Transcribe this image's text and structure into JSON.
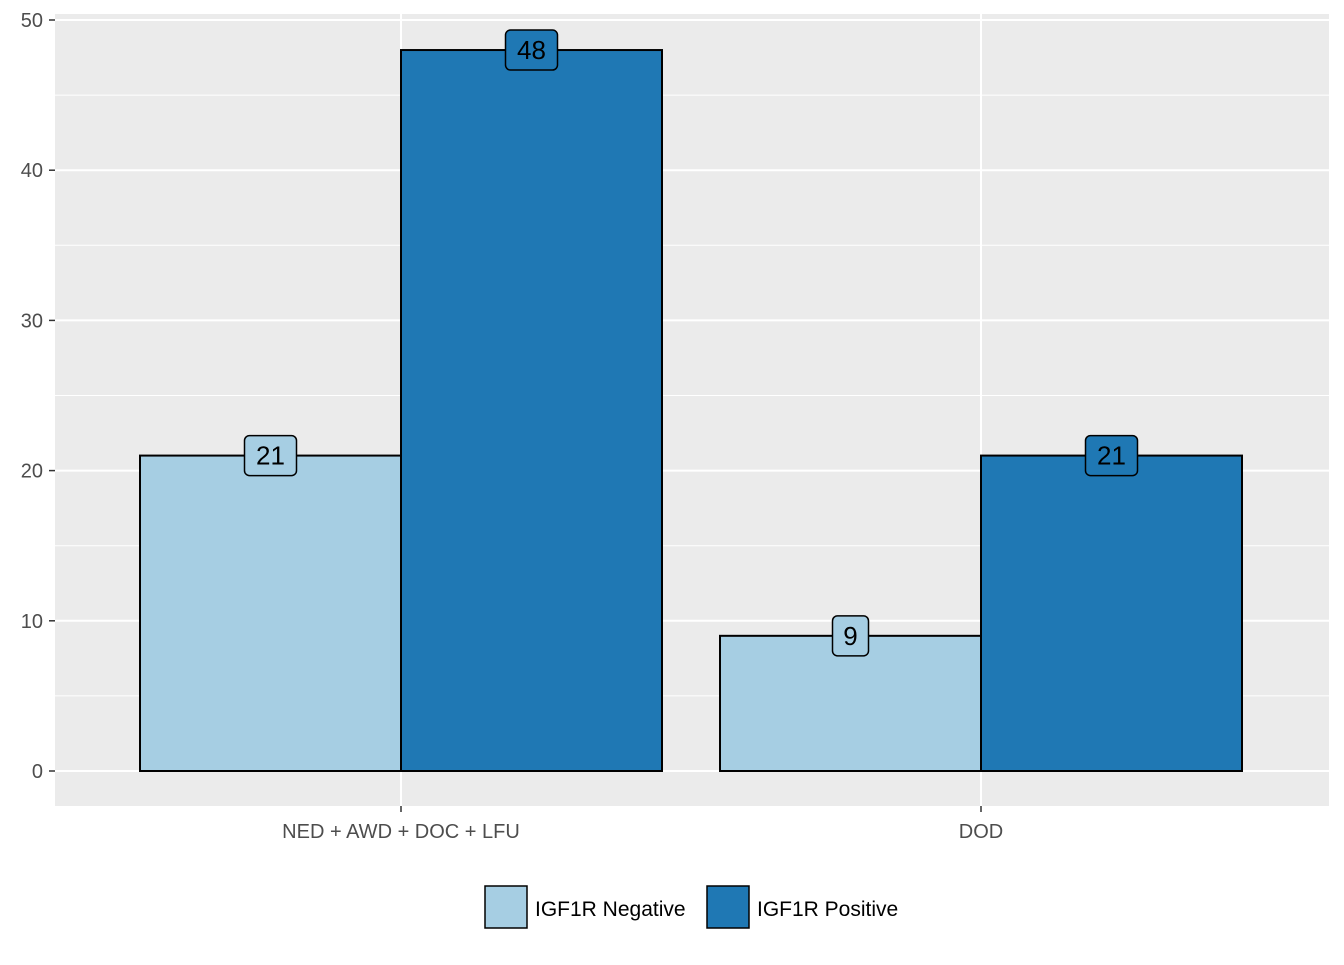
{
  "chart_data": {
    "type": "bar",
    "title": "",
    "xlabel": "",
    "ylabel": "",
    "categories": [
      "NED + AWD + DOC + LFU",
      "DOD"
    ],
    "series": [
      {
        "name": "IGF1R Negative",
        "values": [
          21,
          9
        ],
        "color": "#A6CEE3"
      },
      {
        "name": "IGF1R Positive",
        "values": [
          48,
          21
        ],
        "color": "#1F78B4"
      }
    ],
    "ylim": [
      0,
      50
    ],
    "y_ticks": [
      0,
      10,
      20,
      30,
      40,
      50
    ],
    "grid": true,
    "legend_position": "bottom",
    "data_labels": true,
    "panel_background": "#EBEBEB",
    "grid_color": "#FFFFFF",
    "axis_text_color": "#4D4D4D"
  }
}
